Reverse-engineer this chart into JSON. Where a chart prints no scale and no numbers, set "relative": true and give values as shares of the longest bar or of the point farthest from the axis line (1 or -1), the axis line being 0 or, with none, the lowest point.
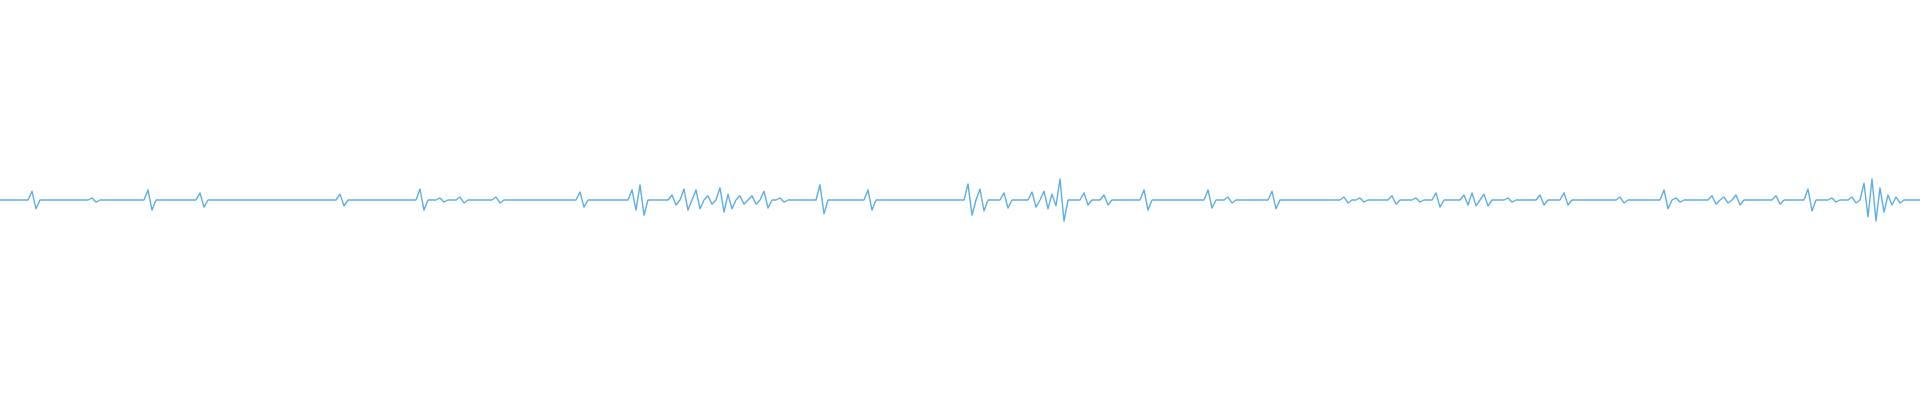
{
  "chart_data": {
    "type": "line",
    "relative": true,
    "tick_labels": false,
    "color": "#5dade2",
    "categories": [
      null,
      null,
      null,
      null,
      null,
      null,
      null,
      null,
      null,
      null,
      null,
      null,
      null,
      null,
      null,
      null,
      null,
      null,
      null,
      null,
      null,
      null,
      null,
      null,
      null,
      null,
      null,
      null,
      null,
      null,
      null,
      null,
      null,
      null,
      null,
      null,
      null,
      null,
      null,
      null,
      null,
      null,
      null,
      null,
      null,
      null,
      null,
      null,
      null,
      null,
      null,
      null,
      null,
      null,
      null,
      null,
      null,
      null,
      null,
      null,
      null,
      null,
      null,
      null,
      null,
      null,
      null,
      null,
      null,
      null,
      null,
      null,
      null,
      null,
      null,
      null,
      null,
      null,
      null,
      null,
      null,
      null,
      null,
      null,
      null,
      null,
      null,
      null,
      null,
      null,
      null,
      null,
      null,
      null,
      null,
      null,
      null,
      null,
      null,
      null,
      null,
      null,
      null,
      null,
      null,
      null,
      null,
      null,
      null,
      null,
      null,
      null,
      null,
      null,
      null,
      null,
      null,
      null,
      null,
      null,
      null,
      null,
      null,
      null,
      null,
      null,
      null,
      null,
      null,
      null,
      null,
      null,
      null,
      null,
      null,
      null,
      null,
      null,
      null,
      null,
      null,
      null,
      null,
      null,
      null,
      null,
      null,
      null,
      null,
      null,
      null,
      null,
      null,
      null,
      null,
      null,
      null,
      null,
      null,
      null,
      null,
      null,
      null,
      null,
      null,
      null,
      null,
      null,
      null,
      null,
      null,
      null,
      null,
      null,
      null,
      null,
      null,
      null,
      null,
      null,
      null,
      null,
      null,
      null,
      null,
      null,
      null,
      null,
      null,
      null,
      null,
      null,
      null,
      null,
      null,
      null,
      null,
      null,
      null,
      null,
      null,
      null,
      null,
      null,
      null,
      null,
      null,
      null,
      null,
      null,
      null,
      null,
      null,
      null,
      null,
      null,
      null,
      null,
      null,
      null,
      null,
      null,
      null,
      null,
      null,
      null,
      null,
      null,
      null,
      null,
      null,
      null,
      null,
      null,
      null,
      null,
      null,
      null,
      null,
      null,
      null,
      null,
      null,
      null,
      null,
      null,
      null,
      null,
      null,
      null,
      null,
      null,
      null,
      null,
      null,
      null,
      null,
      null,
      null,
      null,
      null,
      null,
      null,
      null,
      null,
      null,
      null,
      null,
      null,
      null,
      null,
      null,
      null,
      null,
      null,
      null,
      null,
      null,
      null,
      null,
      null,
      null,
      null,
      null,
      null,
      null,
      null,
      null,
      null,
      null,
      null,
      null,
      null,
      null,
      null,
      null,
      null,
      null,
      null,
      null,
      null,
      null,
      null,
      null,
      null,
      null,
      null,
      null,
      null,
      null,
      null,
      null,
      null,
      null,
      null,
      null,
      null,
      null,
      null,
      null,
      null,
      null,
      null,
      null,
      null,
      null,
      null,
      null,
      null,
      null,
      null,
      null,
      null,
      null,
      null,
      null,
      null,
      null,
      null,
      null,
      null,
      null,
      null,
      null,
      null,
      null,
      null,
      null,
      null,
      null,
      null,
      null,
      null,
      null,
      null,
      null,
      null,
      null,
      null,
      null,
      null,
      null,
      null,
      null,
      null,
      null,
      null,
      null,
      null,
      null,
      null,
      null,
      null,
      null,
      null,
      null,
      null,
      null,
      null,
      null,
      null,
      null,
      null,
      null,
      null,
      null,
      null,
      null,
      null,
      null,
      null,
      null,
      null,
      null,
      null,
      null,
      null,
      null,
      null,
      null,
      null,
      null,
      null,
      null,
      null,
      null,
      null,
      null,
      null,
      null,
      null,
      null,
      null,
      null,
      null,
      null,
      null,
      null,
      null,
      null,
      null,
      null,
      null,
      null,
      null,
      null,
      null,
      null,
      null,
      null,
      null,
      null,
      null,
      null,
      null,
      null,
      null,
      null,
      null,
      null,
      null,
      null,
      null,
      null,
      null,
      null,
      null,
      null,
      null,
      null,
      null,
      null,
      null,
      null,
      null,
      null,
      null,
      null,
      null,
      null,
      null,
      null,
      null,
      null,
      null,
      null,
      null,
      null,
      null,
      null,
      null,
      null,
      null,
      null,
      null,
      null,
      null,
      null,
      null,
      null,
      null
    ],
    "values": [
      0.5,
      0.5,
      0.5,
      0.5,
      0.5,
      0.5,
      0.5,
      0.5,
      0.71,
      0.29,
      0.5,
      0.5,
      0.5,
      0.5,
      0.5,
      0.5,
      0.5,
      0.5,
      0.5,
      0.5,
      0.5,
      0.5,
      0.5,
      0.55,
      0.45,
      0.5,
      0.5,
      0.5,
      0.5,
      0.5,
      0.5,
      0.5,
      0.5,
      0.5,
      0.5,
      0.5,
      0.5,
      0.74,
      0.26,
      0.5,
      0.5,
      0.5,
      0.5,
      0.5,
      0.5,
      0.5,
      0.5,
      0.5,
      0.5,
      0.5,
      0.67,
      0.33,
      0.5,
      0.5,
      0.5,
      0.5,
      0.5,
      0.5,
      0.5,
      0.5,
      0.5,
      0.5,
      0.5,
      0.5,
      0.5,
      0.5,
      0.5,
      0.5,
      0.5,
      0.5,
      0.5,
      0.5,
      0.5,
      0.5,
      0.5,
      0.5,
      0.5,
      0.5,
      0.5,
      0.5,
      0.5,
      0.5,
      0.5,
      0.5,
      0.5,
      0.64,
      0.36,
      0.5,
      0.5,
      0.5,
      0.5,
      0.5,
      0.5,
      0.5,
      0.5,
      0.5,
      0.5,
      0.5,
      0.5,
      0.5,
      0.5,
      0.5,
      0.5,
      0.5,
      0.5,
      0.76,
      0.26,
      0.5,
      0.5,
      0.5,
      0.55,
      0.45,
      0.5,
      0.5,
      0.5,
      0.57,
      0.43,
      0.5,
      0.5,
      0.5,
      0.5,
      0.5,
      0.5,
      0.5,
      0.57,
      0.43,
      0.5,
      0.5,
      0.5,
      0.5,
      0.5,
      0.5,
      0.5,
      0.5,
      0.5,
      0.5,
      0.5,
      0.5,
      0.5,
      0.5,
      0.5,
      0.5,
      0.5,
      0.5,
      0.5,
      0.69,
      0.33,
      0.5,
      0.5,
      0.5,
      0.5,
      0.5,
      0.5,
      0.5,
      0.5,
      0.5,
      0.5,
      0.5,
      0.74,
      0.26,
      0.86,
      0.14,
      0.5,
      0.5,
      0.5,
      0.5,
      0.5,
      0.5,
      0.62,
      0.38,
      0.5,
      0.76,
      0.26,
      0.5,
      0.74,
      0.29,
      0.5,
      0.6,
      0.4,
      0.5,
      0.79,
      0.21,
      0.64,
      0.29,
      0.5,
      0.6,
      0.4,
      0.5,
      0.6,
      0.4,
      0.5,
      0.71,
      0.31,
      0.5,
      0.5,
      0.55,
      0.45,
      0.5,
      0.5,
      0.5,
      0.5,
      0.5,
      0.5,
      0.5,
      0.5,
      0.86,
      0.17,
      0.5,
      0.5,
      0.5,
      0.5,
      0.5,
      0.5,
      0.5,
      0.5,
      0.5,
      0.5,
      0.74,
      0.26,
      0.5,
      0.5,
      0.5,
      0.5,
      0.5,
      0.5,
      0.5,
      0.5,
      0.5,
      0.5,
      0.5,
      0.5,
      0.5,
      0.5,
      0.5,
      0.5,
      0.5,
      0.5,
      0.5,
      0.5,
      0.5,
      0.5,
      0.5,
      0.88,
      0.14,
      0.5,
      0.76,
      0.24,
      0.5,
      0.5,
      0.5,
      0.5,
      0.67,
      0.31,
      0.5,
      0.5,
      0.5,
      0.5,
      0.5,
      0.69,
      0.33,
      0.5,
      0.71,
      0.29,
      0.64,
      0.36,
      1,
      0,
      0.5,
      0.5,
      0.5,
      0.5,
      0.67,
      0.38,
      0.5,
      0.5,
      0.5,
      0.62,
      0.38,
      0.5,
      0.5,
      0.5,
      0.5,
      0.5,
      0.5,
      0.5,
      0.5,
      0.74,
      0.26,
      0.5,
      0.5,
      0.5,
      0.5,
      0.5,
      0.5,
      0.5,
      0.5,
      0.5,
      0.5,
      0.5,
      0.5,
      0.5,
      0.5,
      0.74,
      0.31,
      0.5,
      0.5,
      0.5,
      0.57,
      0.43,
      0.5,
      0.5,
      0.5,
      0.5,
      0.5,
      0.5,
      0.5,
      0.5,
      0.5,
      0.71,
      0.29,
      0.5,
      0.5,
      0.5,
      0.5,
      0.5,
      0.5,
      0.5,
      0.5,
      0.5,
      0.5,
      0.5,
      0.5,
      0.5,
      0.5,
      0.5,
      0.5,
      0.57,
      0.43,
      0.5,
      0.5,
      0.55,
      0.45,
      0.5,
      0.5,
      0.5,
      0.5,
      0.5,
      0.5,
      0.6,
      0.4,
      0.5,
      0.5,
      0.5,
      0.5,
      0.55,
      0.45,
      0.5,
      0.5,
      0.5,
      0.67,
      0.33,
      0.5,
      0.5,
      0.5,
      0.5,
      0.5,
      0.62,
      0.38,
      0.67,
      0.36,
      0.5,
      0.64,
      0.36,
      0.5,
      0.5,
      0.5,
      0.5,
      0.55,
      0.45,
      0.5,
      0.5,
      0.5,
      0.5,
      0.5,
      0.5,
      0.62,
      0.38,
      0.5,
      0.5,
      0.5,
      0.5,
      0.67,
      0.38,
      0.5,
      0.5,
      0.5,
      0.5,
      0.5,
      0.5,
      0.5,
      0.5,
      0.5,
      0.5,
      0.5,
      0.5,
      0.57,
      0.43,
      0.5,
      0.5,
      0.5,
      0.5,
      0.5,
      0.5,
      0.5,
      0.5,
      0.5,
      0.74,
      0.29,
      0.5,
      0.55,
      0.45,
      0.5,
      0.5,
      0.5,
      0.5,
      0.5,
      0.5,
      0.5,
      0.6,
      0.4,
      0.5,
      0.57,
      0.43,
      0.5,
      0.62,
      0.38,
      0.5,
      0.5,
      0.5,
      0.5,
      0.5,
      0.5,
      0.5,
      0.5,
      0.6,
      0.4,
      0.5,
      0.5,
      0.5,
      0.5,
      0.5,
      0.5,
      0.76,
      0.24,
      0.5,
      0.5,
      0.5,
      0.5,
      0.55,
      0.45,
      0.5,
      0.5,
      0.5,
      0.57,
      0.43,
      0.5,
      0.9,
      0.1,
      1,
      0,
      0.79,
      0.21,
      0.62,
      0.38,
      0.57,
      0.43,
      0.5,
      0.5,
      0.5,
      0.5,
      0.5
    ]
  }
}
